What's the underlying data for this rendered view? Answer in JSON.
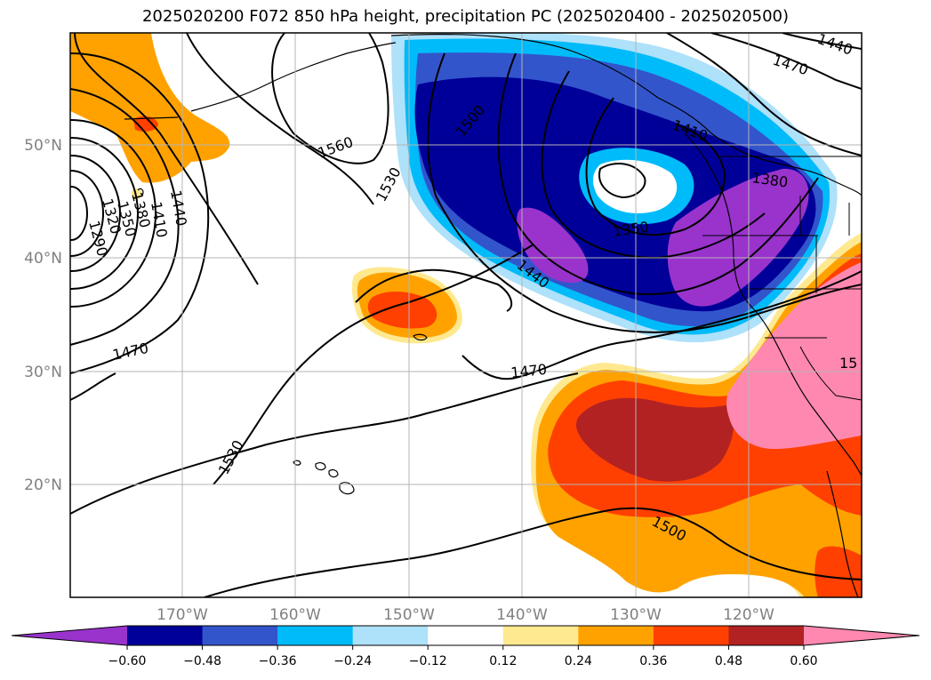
{
  "title": "2025020200 F072 850 hPa height, precipitation PC (2025020400 - 2025020500)",
  "lat_labels": [
    "50°N",
    "40°N",
    "30°N",
    "20°N"
  ],
  "lon_labels": [
    "170°W",
    "160°W",
    "150°W",
    "140°W",
    "130°W",
    "120°W"
  ],
  "contour_labels": [
    "1290",
    "1320",
    "1350",
    "1380",
    "1410",
    "1440",
    "1470",
    "1530",
    "1560",
    "1500",
    "1410",
    "1380",
    "1350",
    "1440",
    "1470",
    "1470",
    "1530",
    "1500",
    "1440",
    "15"
  ],
  "colorbar": {
    "ticks": [
      "−0.60",
      "−0.48",
      "−0.36",
      "−0.24",
      "−0.12",
      "0.12",
      "0.24",
      "0.36",
      "0.48",
      "0.60"
    ],
    "colors": [
      "#9933cc",
      "#000099",
      "#3355cc",
      "#00bbf9",
      "#aee1fa",
      "#ffffff",
      "#ffe990",
      "#ffa200",
      "#ff4000",
      "#b22222",
      "#ff88b0"
    ]
  }
}
